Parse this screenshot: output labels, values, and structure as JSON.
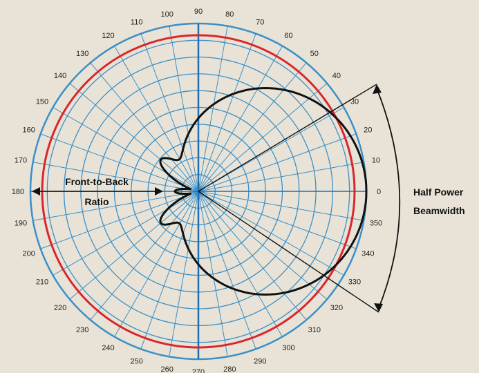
{
  "diagram": {
    "angle_labels": [
      "0",
      "10",
      "20",
      "30",
      "40",
      "50",
      "60",
      "70",
      "80",
      "90",
      "100",
      "110",
      "120",
      "130",
      "140",
      "150",
      "160",
      "170",
      "180",
      "190",
      "200",
      "210",
      "220",
      "230",
      "240",
      "250",
      "260",
      "270",
      "280",
      "290",
      "300",
      "310",
      "320",
      "330",
      "340",
      "350"
    ],
    "annotations": {
      "front_to_back_line1": "Front-to-Back",
      "front_to_back_line2": "Ratio",
      "half_power_line1": "Half Power",
      "half_power_line2": "Beamwidth"
    },
    "colors": {
      "background": "#e8e3d6",
      "grid": "#3a8fc8",
      "outer_ring": "#3a8fc8",
      "axis": "#1f6fb5",
      "reference_circle": "#d9262b",
      "pattern": "#111111"
    },
    "pattern": {
      "shape": "cardioid",
      "main_lobe_direction_deg": 0,
      "half_power_beamwidth_deg": 60,
      "back_lobe_level": 0.12
    }
  }
}
